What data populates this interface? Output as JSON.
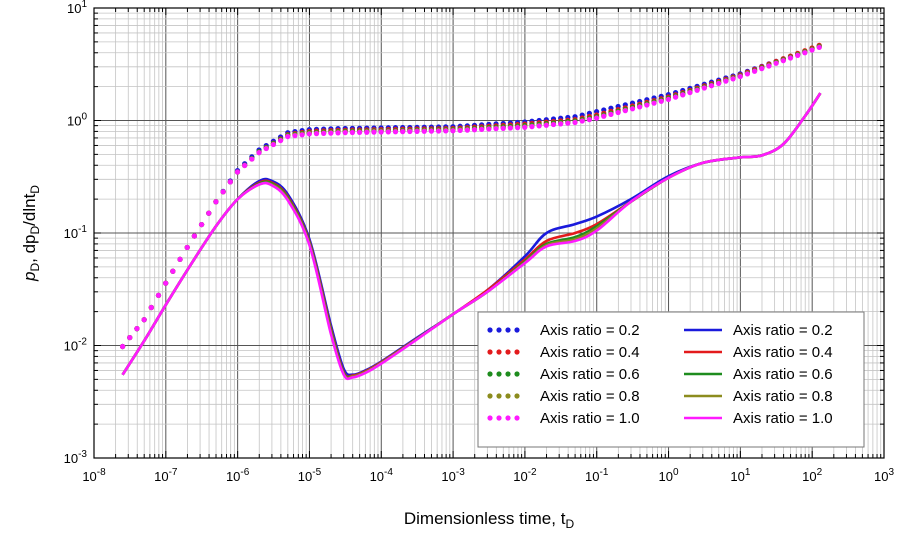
{
  "chart_data": {
    "type": "line",
    "xscale": "log",
    "yscale": "log",
    "xlim": [
      1e-08,
      1000
    ],
    "ylim": [
      0.001,
      10
    ],
    "grid": true,
    "legend_position": "bottom-right",
    "xlabel": "Dimensionless time, t",
    "xlabel_sub": "D",
    "ylabel_parts": [
      "p",
      "D",
      ", dp",
      "D",
      "/dlnt",
      "D"
    ],
    "x_ticks": [
      {
        "value": 1e-08,
        "base": "10",
        "exp": "-8"
      },
      {
        "value": 1e-07,
        "base": "10",
        "exp": "-7"
      },
      {
        "value": 1e-06,
        "base": "10",
        "exp": "-6"
      },
      {
        "value": 1e-05,
        "base": "10",
        "exp": "-5"
      },
      {
        "value": 0.0001,
        "base": "10",
        "exp": "-4"
      },
      {
        "value": 0.001,
        "base": "10",
        "exp": "-3"
      },
      {
        "value": 0.01,
        "base": "10",
        "exp": "-2"
      },
      {
        "value": 0.1,
        "base": "10",
        "exp": "-1"
      },
      {
        "value": 1,
        "base": "10",
        "exp": "0"
      },
      {
        "value": 10,
        "base": "10",
        "exp": "1"
      },
      {
        "value": 100,
        "base": "10",
        "exp": "2"
      },
      {
        "value": 1000,
        "base": "10",
        "exp": "3"
      }
    ],
    "y_ticks": [
      {
        "value": 0.001,
        "base": "10",
        "exp": "-3"
      },
      {
        "value": 0.01,
        "base": "10",
        "exp": "-2"
      },
      {
        "value": 0.1,
        "base": "10",
        "exp": "-1"
      },
      {
        "value": 1,
        "base": "10",
        "exp": "0"
      },
      {
        "value": 10,
        "base": "10",
        "exp": "1"
      }
    ],
    "series": [
      {
        "name": "Axis ratio = 0.2",
        "kind": "pressure",
        "style": "dotted",
        "color": "#1a1adc",
        "points": [
          [
            2.5e-08,
            0.0098
          ],
          [
            5e-08,
            0.017
          ],
          [
            1e-07,
            0.036
          ],
          [
            2e-07,
            0.075
          ],
          [
            5e-07,
            0.19
          ],
          [
            1e-06,
            0.36
          ],
          [
            2e-06,
            0.55
          ],
          [
            5e-06,
            0.78
          ],
          [
            1e-05,
            0.83
          ],
          [
            3e-05,
            0.85
          ],
          [
            0.0001,
            0.86
          ],
          [
            0.001,
            0.88
          ],
          [
            0.01,
            0.97
          ],
          [
            0.05,
            1.08
          ],
          [
            0.1,
            1.2
          ],
          [
            1,
            1.7
          ],
          [
            10,
            2.6
          ],
          [
            130,
            4.6
          ]
        ]
      },
      {
        "name": "Axis ratio = 0.4",
        "kind": "pressure",
        "style": "dotted",
        "color": "#e31a1c",
        "points": [
          [
            2.5e-08,
            0.0098
          ],
          [
            5e-08,
            0.017
          ],
          [
            1e-07,
            0.036
          ],
          [
            2e-07,
            0.075
          ],
          [
            5e-07,
            0.19
          ],
          [
            1e-06,
            0.35
          ],
          [
            2e-06,
            0.53
          ],
          [
            5e-06,
            0.75
          ],
          [
            1e-05,
            0.8
          ],
          [
            3e-05,
            0.82
          ],
          [
            0.0001,
            0.83
          ],
          [
            0.001,
            0.85
          ],
          [
            0.01,
            0.93
          ],
          [
            0.05,
            1.02
          ],
          [
            0.1,
            1.12
          ],
          [
            1,
            1.62
          ],
          [
            10,
            2.55
          ],
          [
            130,
            4.7
          ]
        ]
      },
      {
        "name": "Axis ratio = 0.6",
        "kind": "pressure",
        "style": "dotted",
        "color": "#1e8c1e",
        "points": [
          [
            2.5e-08,
            0.0098
          ],
          [
            5e-08,
            0.017
          ],
          [
            1e-07,
            0.036
          ],
          [
            2e-07,
            0.075
          ],
          [
            5e-07,
            0.19
          ],
          [
            1e-06,
            0.35
          ],
          [
            2e-06,
            0.53
          ],
          [
            5e-06,
            0.74
          ],
          [
            1e-05,
            0.78
          ],
          [
            3e-05,
            0.8
          ],
          [
            0.0001,
            0.81
          ],
          [
            0.001,
            0.83
          ],
          [
            0.01,
            0.9
          ],
          [
            0.05,
            0.99
          ],
          [
            0.1,
            1.08
          ],
          [
            1,
            1.58
          ],
          [
            10,
            2.5
          ],
          [
            130,
            4.6
          ]
        ]
      },
      {
        "name": "Axis ratio = 0.8",
        "kind": "pressure",
        "style": "dotted",
        "color": "#8c8c1e",
        "points": [
          [
            2.5e-08,
            0.0098
          ],
          [
            5e-08,
            0.017
          ],
          [
            1e-07,
            0.036
          ],
          [
            2e-07,
            0.075
          ],
          [
            5e-07,
            0.19
          ],
          [
            1e-06,
            0.35
          ],
          [
            2e-06,
            0.52
          ],
          [
            5e-06,
            0.73
          ],
          [
            1e-05,
            0.77
          ],
          [
            3e-05,
            0.79
          ],
          [
            0.0001,
            0.8
          ],
          [
            0.001,
            0.82
          ],
          [
            0.01,
            0.88
          ],
          [
            0.05,
            0.97
          ],
          [
            0.1,
            1.06
          ],
          [
            1,
            1.55
          ],
          [
            10,
            2.48
          ],
          [
            130,
            4.55
          ]
        ]
      },
      {
        "name": "Axis ratio = 1.0",
        "kind": "pressure",
        "style": "dotted",
        "color": "#ff1aff",
        "points": [
          [
            2.5e-08,
            0.0098
          ],
          [
            5e-08,
            0.017
          ],
          [
            1e-07,
            0.036
          ],
          [
            2e-07,
            0.075
          ],
          [
            5e-07,
            0.19
          ],
          [
            1e-06,
            0.35
          ],
          [
            2e-06,
            0.52
          ],
          [
            5e-06,
            0.72
          ],
          [
            1e-05,
            0.76
          ],
          [
            3e-05,
            0.78
          ],
          [
            0.0001,
            0.79
          ],
          [
            0.001,
            0.81
          ],
          [
            0.01,
            0.87
          ],
          [
            0.05,
            0.96
          ],
          [
            0.1,
            1.05
          ],
          [
            1,
            1.54
          ],
          [
            10,
            2.46
          ],
          [
            130,
            4.5
          ]
        ]
      },
      {
        "name": "Axis ratio = 0.2",
        "kind": "derivative",
        "style": "solid",
        "color": "#1a1adc",
        "points": [
          [
            2.5e-08,
            0.0055
          ],
          [
            5e-08,
            0.011
          ],
          [
            1e-07,
            0.023
          ],
          [
            2e-07,
            0.047
          ],
          [
            5e-07,
            0.115
          ],
          [
            1e-06,
            0.2
          ],
          [
            2e-06,
            0.29
          ],
          [
            3e-06,
            0.29
          ],
          [
            5e-06,
            0.22
          ],
          [
            1e-05,
            0.088
          ],
          [
            2e-05,
            0.015
          ],
          [
            3e-05,
            0.0062
          ],
          [
            4e-05,
            0.0055
          ],
          [
            6e-05,
            0.006
          ],
          [
            0.0001,
            0.0072
          ],
          [
            0.0003,
            0.0115
          ],
          [
            0.001,
            0.019
          ],
          [
            0.003,
            0.031
          ],
          [
            0.01,
            0.062
          ],
          [
            0.02,
            0.1
          ],
          [
            0.05,
            0.12
          ],
          [
            0.1,
            0.14
          ],
          [
            0.3,
            0.2
          ],
          [
            1,
            0.32
          ],
          [
            3,
            0.42
          ],
          [
            10,
            0.47
          ],
          [
            20,
            0.49
          ],
          [
            40,
            0.62
          ],
          [
            80,
            1.1
          ],
          [
            130,
            1.75
          ]
        ]
      },
      {
        "name": "Axis ratio = 0.4",
        "kind": "derivative",
        "style": "solid",
        "color": "#e31a1c",
        "points": [
          [
            2.5e-08,
            0.0055
          ],
          [
            5e-08,
            0.011
          ],
          [
            1e-07,
            0.023
          ],
          [
            2e-07,
            0.047
          ],
          [
            5e-07,
            0.115
          ],
          [
            1e-06,
            0.2
          ],
          [
            2e-06,
            0.28
          ],
          [
            3e-06,
            0.28
          ],
          [
            5e-06,
            0.21
          ],
          [
            1e-05,
            0.084
          ],
          [
            2e-05,
            0.014
          ],
          [
            3e-05,
            0.0058
          ],
          [
            4e-05,
            0.0054
          ],
          [
            6e-05,
            0.0059
          ],
          [
            0.0001,
            0.0071
          ],
          [
            0.0003,
            0.0113
          ],
          [
            0.001,
            0.019
          ],
          [
            0.003,
            0.031
          ],
          [
            0.01,
            0.058
          ],
          [
            0.02,
            0.085
          ],
          [
            0.05,
            0.1
          ],
          [
            0.1,
            0.12
          ],
          [
            0.3,
            0.19
          ],
          [
            1,
            0.31
          ],
          [
            3,
            0.42
          ],
          [
            10,
            0.47
          ],
          [
            20,
            0.49
          ],
          [
            40,
            0.62
          ],
          [
            80,
            1.1
          ],
          [
            130,
            1.75
          ]
        ]
      },
      {
        "name": "Axis ratio = 0.6",
        "kind": "derivative",
        "style": "solid",
        "color": "#1e8c1e",
        "points": [
          [
            2.5e-08,
            0.0055
          ],
          [
            5e-08,
            0.011
          ],
          [
            1e-07,
            0.023
          ],
          [
            2e-07,
            0.047
          ],
          [
            5e-07,
            0.115
          ],
          [
            1e-06,
            0.2
          ],
          [
            2e-06,
            0.275
          ],
          [
            3e-06,
            0.275
          ],
          [
            5e-06,
            0.205
          ],
          [
            1e-05,
            0.082
          ],
          [
            2e-05,
            0.0135
          ],
          [
            3e-05,
            0.0057
          ],
          [
            4e-05,
            0.0053
          ],
          [
            6e-05,
            0.0058
          ],
          [
            0.0001,
            0.007
          ],
          [
            0.0003,
            0.0112
          ],
          [
            0.001,
            0.019
          ],
          [
            0.003,
            0.03
          ],
          [
            0.01,
            0.056
          ],
          [
            0.02,
            0.08
          ],
          [
            0.05,
            0.092
          ],
          [
            0.1,
            0.115
          ],
          [
            0.3,
            0.19
          ],
          [
            1,
            0.31
          ],
          [
            3,
            0.42
          ],
          [
            10,
            0.47
          ],
          [
            20,
            0.49
          ],
          [
            40,
            0.62
          ],
          [
            80,
            1.1
          ],
          [
            130,
            1.75
          ]
        ]
      },
      {
        "name": "Axis ratio = 0.8",
        "kind": "derivative",
        "style": "solid",
        "color": "#8c8c1e",
        "points": [
          [
            2.5e-08,
            0.0055
          ],
          [
            5e-08,
            0.011
          ],
          [
            1e-07,
            0.023
          ],
          [
            2e-07,
            0.047
          ],
          [
            5e-07,
            0.115
          ],
          [
            1e-06,
            0.2
          ],
          [
            2e-06,
            0.27
          ],
          [
            3e-06,
            0.27
          ],
          [
            5e-06,
            0.2
          ],
          [
            1e-05,
            0.08
          ],
          [
            2e-05,
            0.013
          ],
          [
            3e-05,
            0.0056
          ],
          [
            4e-05,
            0.0053
          ],
          [
            6e-05,
            0.0058
          ],
          [
            0.0001,
            0.007
          ],
          [
            0.0003,
            0.0112
          ],
          [
            0.001,
            0.019
          ],
          [
            0.003,
            0.03
          ],
          [
            0.01,
            0.055
          ],
          [
            0.02,
            0.078
          ],
          [
            0.05,
            0.088
          ],
          [
            0.1,
            0.11
          ],
          [
            0.3,
            0.19
          ],
          [
            1,
            0.31
          ],
          [
            3,
            0.42
          ],
          [
            10,
            0.47
          ],
          [
            20,
            0.49
          ],
          [
            40,
            0.62
          ],
          [
            80,
            1.1
          ],
          [
            130,
            1.75
          ]
        ]
      },
      {
        "name": "Axis ratio = 1.0",
        "kind": "derivative",
        "style": "solid",
        "color": "#ff1aff",
        "points": [
          [
            2.5e-08,
            0.0055
          ],
          [
            5e-08,
            0.011
          ],
          [
            1e-07,
            0.023
          ],
          [
            2e-07,
            0.047
          ],
          [
            5e-07,
            0.115
          ],
          [
            1e-06,
            0.2
          ],
          [
            2e-06,
            0.27
          ],
          [
            3e-06,
            0.265
          ],
          [
            5e-06,
            0.195
          ],
          [
            1e-05,
            0.078
          ],
          [
            2e-05,
            0.0125
          ],
          [
            3e-05,
            0.0055
          ],
          [
            4e-05,
            0.0052
          ],
          [
            6e-05,
            0.0057
          ],
          [
            0.0001,
            0.0069
          ],
          [
            0.0003,
            0.0111
          ],
          [
            0.001,
            0.019
          ],
          [
            0.003,
            0.03
          ],
          [
            0.01,
            0.054
          ],
          [
            0.02,
            0.076
          ],
          [
            0.05,
            0.085
          ],
          [
            0.1,
            0.105
          ],
          [
            0.3,
            0.19
          ],
          [
            1,
            0.31
          ],
          [
            3,
            0.42
          ],
          [
            10,
            0.47
          ],
          [
            20,
            0.49
          ],
          [
            40,
            0.62
          ],
          [
            80,
            1.1
          ],
          [
            130,
            1.75
          ]
        ]
      }
    ]
  }
}
